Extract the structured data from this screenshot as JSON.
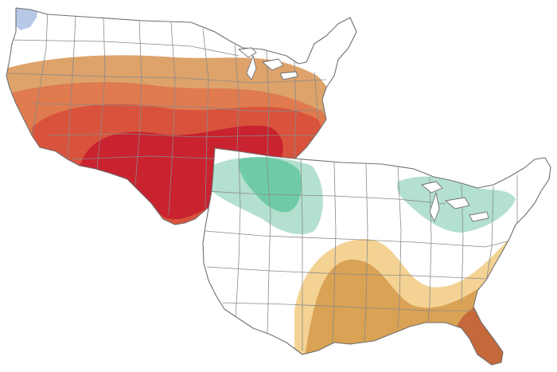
{
  "maps": [
    {
      "id": "temperature-outlook",
      "colors": {
        "above_light": "#dda36b",
        "above_mid": "#e07a4f",
        "above_strong": "#d9533c",
        "above_max": "#c8232e",
        "below_light": "#b7c9e6"
      }
    },
    {
      "id": "precipitation-outlook",
      "colors": {
        "above_light": "#b3e0cf",
        "above_mid": "#6fcaa8",
        "below_light": "#f3d293",
        "below_mid": "#d9a254",
        "below_strong": "#c5683a"
      }
    }
  ]
}
